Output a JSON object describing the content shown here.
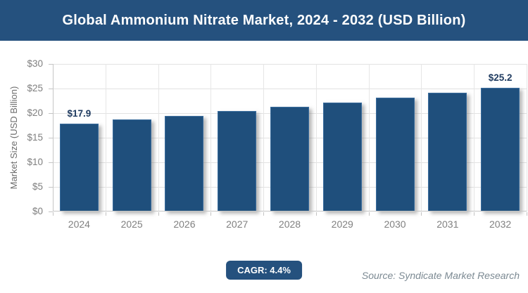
{
  "chart_data": {
    "type": "bar",
    "title": "Global Ammonium Nitrate Market, 2024 - 2032 (USD Billion)",
    "categories": [
      "2024",
      "2025",
      "2026",
      "2027",
      "2028",
      "2029",
      "2030",
      "2031",
      "2032"
    ],
    "values": [
      17.9,
      18.7,
      19.5,
      20.4,
      21.3,
      22.2,
      23.2,
      24.2,
      25.2
    ],
    "point_labels": [
      "$17.9",
      "",
      "",
      "",
      "",
      "",
      "",
      "",
      "$25.2"
    ],
    "xlabel": "",
    "ylabel": "Market Size (USD Billion)",
    "ylim": [
      0,
      30
    ],
    "yticks": [
      0,
      5,
      10,
      15,
      20,
      25,
      30
    ],
    "ytick_labels": [
      "$0",
      "$5",
      "$10",
      "$15",
      "$20",
      "$25",
      "$30"
    ],
    "grid": true,
    "legend": false,
    "bar_color": "#1F4F7C"
  },
  "footer": {
    "cagr_label": "CAGR: 4.4%",
    "source": "Source: Syndicate Market Research"
  },
  "colors": {
    "header_bg": "#25517E",
    "bar": "#1F4F7C",
    "badge_bg": "#25517E",
    "data_label_text": "#1E3A5F",
    "tick_text": "#7F7F7F",
    "grid": "#E2E2E2",
    "axis": "#C6C6C6",
    "source_text": "#7C8A93"
  }
}
